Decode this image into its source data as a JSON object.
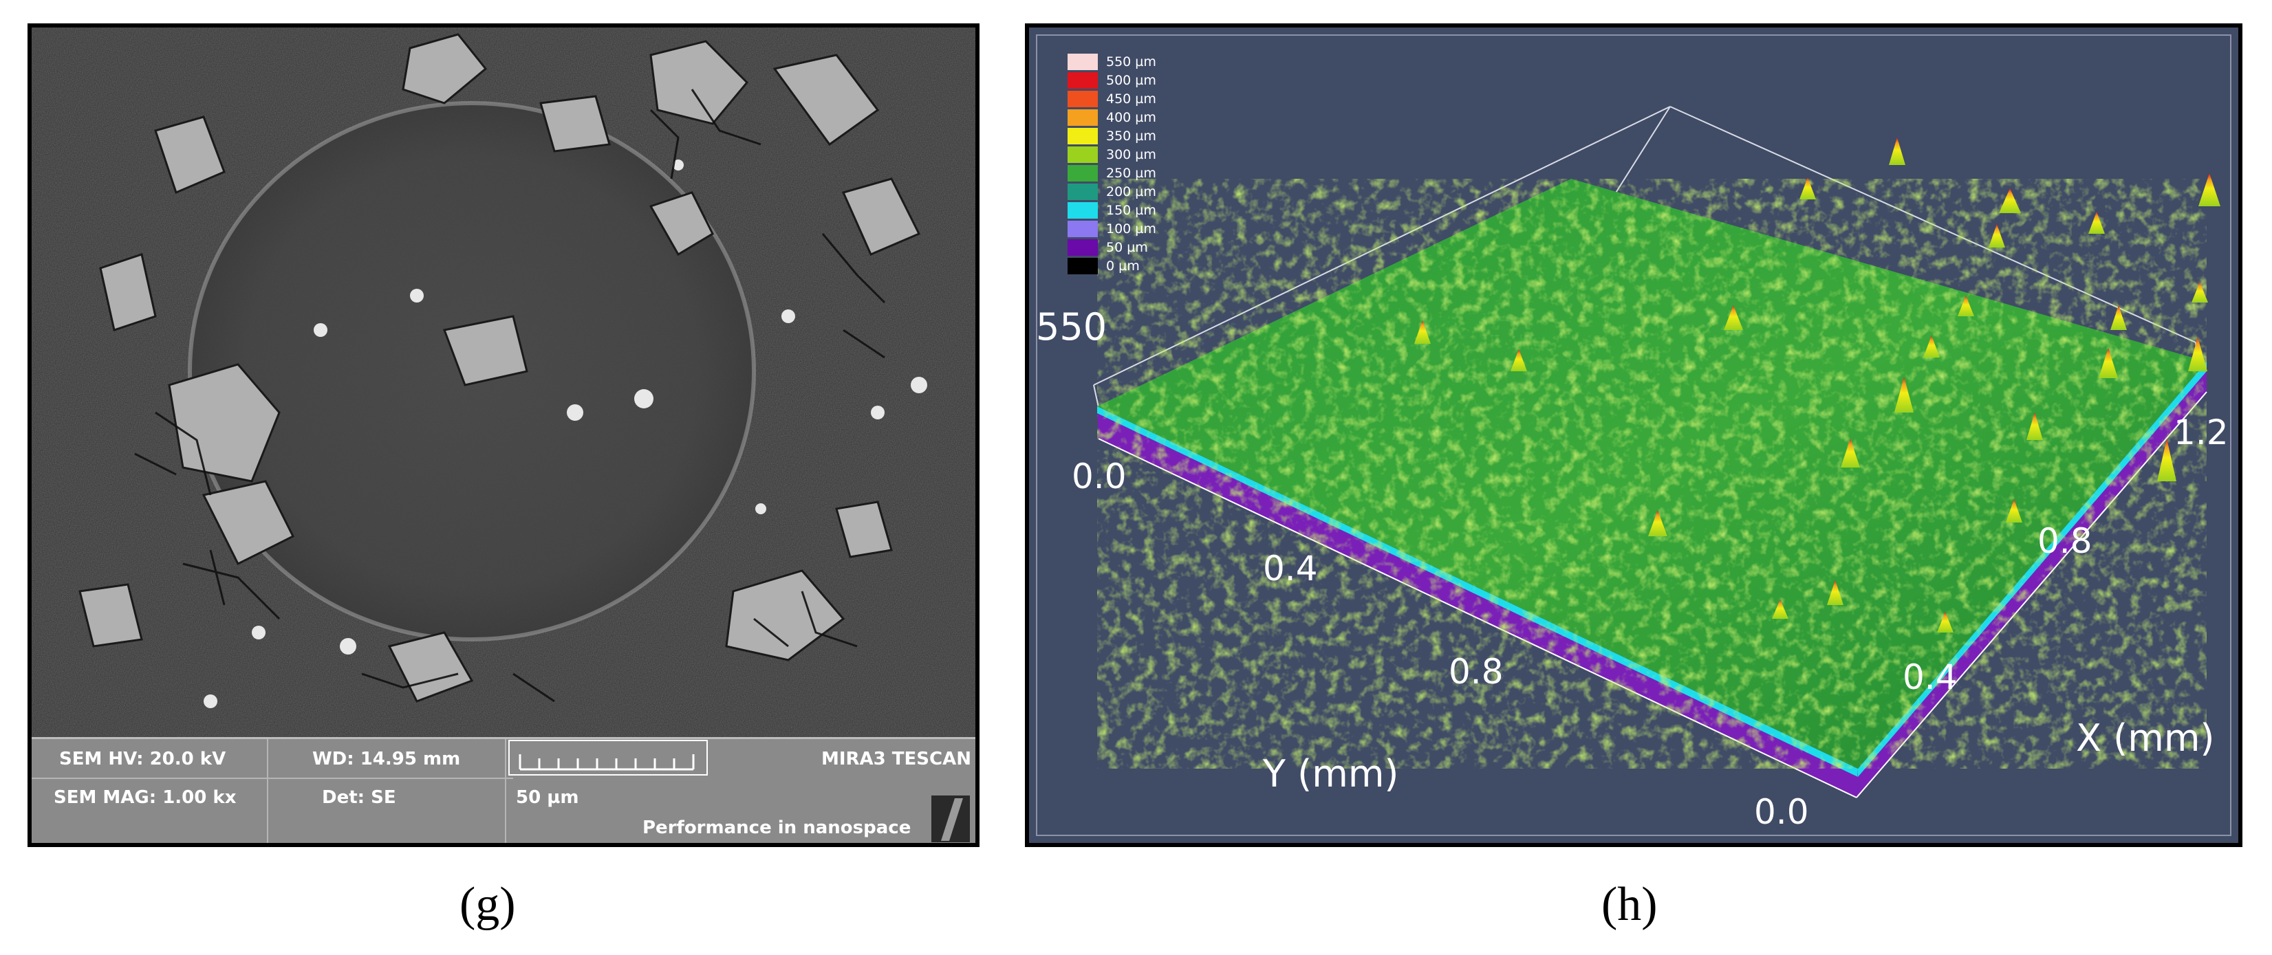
{
  "panels": {
    "g": {
      "caption": "(g)",
      "sem_info": {
        "hv": "SEM HV: 20.0 kV",
        "wd": "WD: 14.95 mm",
        "mag": "SEM MAG: 1.00 kx",
        "det": "Det: SE",
        "scale": "50 µm",
        "brand": "MIRA3 TESCAN",
        "tagline": "Performance in nanospace"
      }
    },
    "h": {
      "caption": "(h)",
      "z_label": "550",
      "x_axis": {
        "label": "X (mm)",
        "ticks": [
          "0.4",
          "0.8",
          "1.2"
        ]
      },
      "y_axis": {
        "label": "Y (mm)",
        "ticks": [
          "0.0",
          "0.4",
          "0.8"
        ]
      },
      "origin_label": "0.0",
      "legend": [
        {
          "label": "550 µm",
          "color": "#f8d8d8"
        },
        {
          "label": "500 µm",
          "color": "#e0141c"
        },
        {
          "label": "450 µm",
          "color": "#f0501e"
        },
        {
          "label": "400 µm",
          "color": "#f5a01e"
        },
        {
          "label": "350 µm",
          "color": "#f2ee14"
        },
        {
          "label": "300 µm",
          "color": "#9ad21e"
        },
        {
          "label": "250 µm",
          "color": "#3aaa3a"
        },
        {
          "label": "200 µm",
          "color": "#1e9a82"
        },
        {
          "label": "150 µm",
          "color": "#1edcea"
        },
        {
          "label": "100 µm",
          "color": "#8c78f0"
        },
        {
          "label": "50 µm",
          "color": "#6a0aa8"
        },
        {
          "label": "0 µm",
          "color": "#000000"
        }
      ]
    }
  }
}
